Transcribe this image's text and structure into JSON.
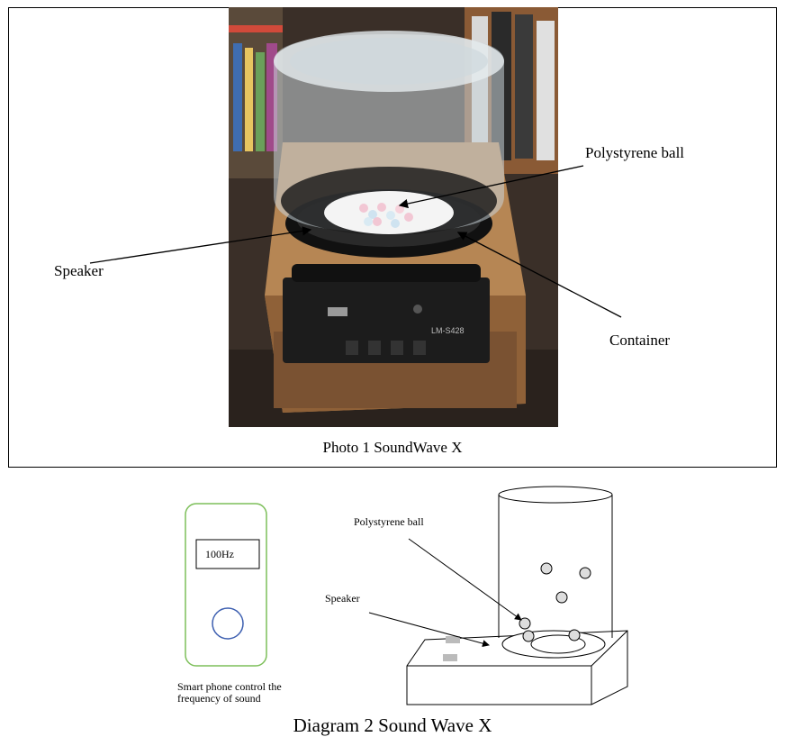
{
  "photo": {
    "labels": {
      "polystyrene_ball": "Polystyrene ball",
      "speaker": "Speaker",
      "container": "Container"
    },
    "device_panel_text": "LM-S428",
    "caption": "Photo 1 SoundWave X"
  },
  "diagram": {
    "phone_display": "100Hz",
    "phone_caption_line1": "Smart phone control the",
    "phone_caption_line2": "frequency of sound",
    "labels": {
      "polystyrene_ball": "Polystyrene ball",
      "speaker": "Speaker"
    },
    "caption": "Diagram 2 Sound Wave X"
  },
  "colors": {
    "phone_outline": "#7dbf5a",
    "phone_button": "#3d5fb0"
  }
}
